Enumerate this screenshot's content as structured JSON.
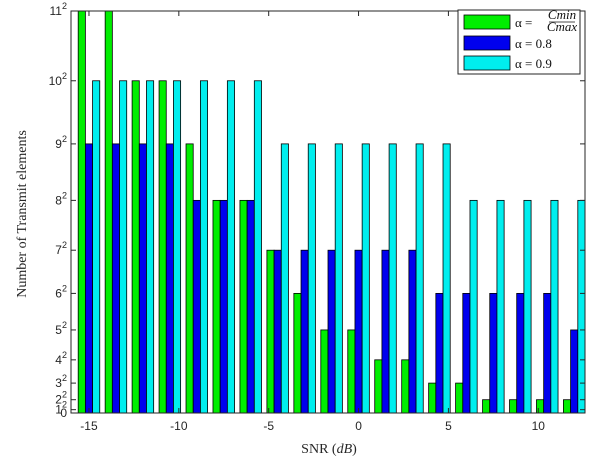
{
  "chart_data": {
    "type": "bar",
    "xlabel": "SNR (dB)",
    "xlabel_parts": {
      "prefix": "SNR (",
      "unit": "dB",
      "suffix": ")"
    },
    "ylabel": "Number of Transmit elements",
    "x": [
      -15,
      -13.5,
      -12,
      -10.5,
      -9,
      -7.5,
      -6,
      -4.5,
      -3,
      -1.5,
      0,
      1.5,
      3,
      4.5,
      6,
      7.5,
      9,
      10.5,
      12
    ],
    "xticks": [
      "-15",
      "-10",
      "-5",
      "0",
      "5",
      "10"
    ],
    "xtick_values": [
      -15,
      -10,
      -5,
      0,
      5,
      10
    ],
    "xlim": [
      -16,
      12.6
    ],
    "ylim": [
      0,
      121
    ],
    "y_scale": "squared-tick labels (y = n^2)",
    "yticks": [
      {
        "value": 0,
        "base": "0",
        "exp": ""
      },
      {
        "value": 1,
        "base": "1",
        "exp": "2"
      },
      {
        "value": 4,
        "base": "2",
        "exp": "2"
      },
      {
        "value": 9,
        "base": "3",
        "exp": "2"
      },
      {
        "value": 16,
        "base": "4",
        "exp": "2"
      },
      {
        "value": 25,
        "base": "5",
        "exp": "2"
      },
      {
        "value": 36,
        "base": "6",
        "exp": "2"
      },
      {
        "value": 49,
        "base": "7",
        "exp": "2"
      },
      {
        "value": 64,
        "base": "8",
        "exp": "2"
      },
      {
        "value": 81,
        "base": "9",
        "exp": "2"
      },
      {
        "value": 100,
        "base": "10",
        "exp": "2"
      },
      {
        "value": 121,
        "base": "11",
        "exp": "2"
      }
    ],
    "series": [
      {
        "name": "α = Cmin / Cmax",
        "legend_label": {
          "lhs": "α =",
          "num": "Cmin",
          "den": "Cmax"
        },
        "color": "#00ee00",
        "values": [
          121,
          121,
          100,
          100,
          81,
          64,
          64,
          49,
          36,
          25,
          25,
          16,
          16,
          9,
          9,
          4,
          4,
          4,
          4
        ]
      },
      {
        "name": "α = 0.8",
        "legend_label": {
          "lhs": "α = 0.8"
        },
        "color": "#0000ee",
        "values": [
          81,
          81,
          81,
          81,
          64,
          64,
          64,
          49,
          49,
          49,
          49,
          49,
          49,
          36,
          36,
          36,
          36,
          36,
          25
        ]
      },
      {
        "name": "α = 0.9",
        "legend_label": {
          "lhs": "α = 0.9"
        },
        "color": "#00eeee",
        "values": [
          100,
          100,
          100,
          100,
          100,
          100,
          100,
          81,
          81,
          81,
          81,
          81,
          81,
          81,
          64,
          64,
          64,
          64,
          64
        ]
      }
    ],
    "legend_position": "top-right",
    "grid": false
  }
}
